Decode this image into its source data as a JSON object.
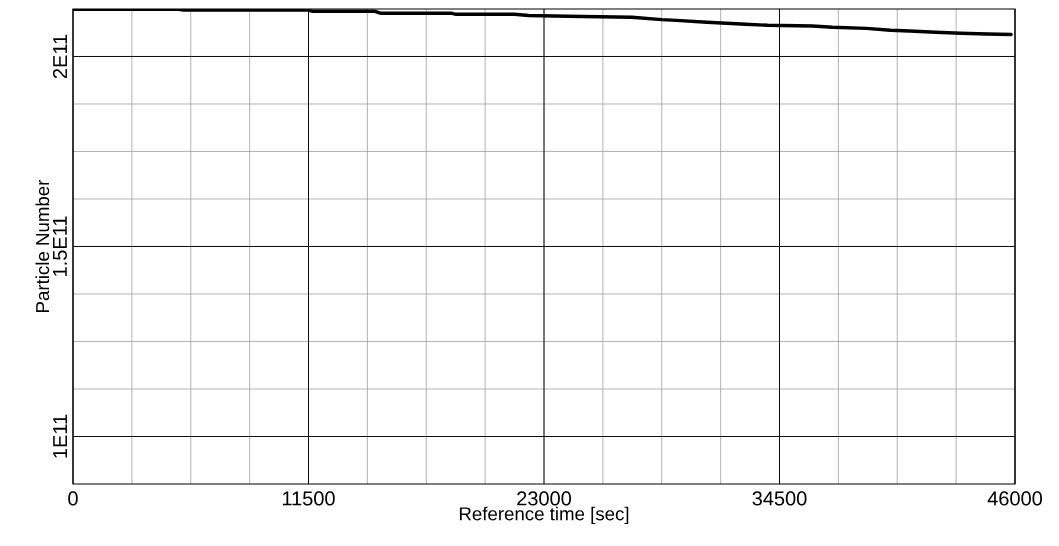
{
  "chart_data": {
    "type": "line",
    "xlabel": "Reference time [sec]",
    "ylabel": "Particle Number",
    "xlim": [
      0,
      46000
    ],
    "ylim": [
      87500000000,
      212500000000
    ],
    "xticks": [
      0,
      {
        "value": 2875,
        "label": null
      },
      {
        "value": 5750,
        "label": null
      },
      {
        "value": 8625,
        "label": null
      },
      11500,
      {
        "value": 14375,
        "label": null
      },
      {
        "value": 17250,
        "label": null
      },
      {
        "value": 20125,
        "label": null
      },
      23000,
      {
        "value": 25875,
        "label": null
      },
      {
        "value": 28750,
        "label": null
      },
      {
        "value": 31625,
        "label": null
      },
      34500,
      {
        "value": 37375,
        "label": null
      },
      {
        "value": 40250,
        "label": null
      },
      {
        "value": 43125,
        "label": null
      },
      46000
    ],
    "yticks": [
      {
        "value": 100000000000,
        "label": "1E11"
      },
      {
        "value": 112500000000,
        "label": null
      },
      {
        "value": 125000000000,
        "label": null
      },
      {
        "value": 137500000000,
        "label": null
      },
      {
        "value": 150000000000,
        "label": "1.5E11"
      },
      {
        "value": 162500000000,
        "label": null
      },
      {
        "value": 175000000000,
        "label": null
      },
      {
        "value": 187500000000,
        "label": null
      },
      {
        "value": 200000000000,
        "label": "2E11"
      }
    ],
    "grid": true,
    "series": [
      {
        "color": "#000000",
        "x": [
          0,
          5180,
          5400,
          11500,
          11700,
          14750,
          15000,
          18470,
          18700,
          21540,
          22250,
          24130,
          27290,
          28750,
          29460,
          30960,
          32850,
          33930,
          36100,
          37090,
          38740,
          39920,
          40860,
          42130,
          43360,
          44630,
          45810
        ],
        "values": [
          212400000000,
          212400000000,
          212200000000,
          212200000000,
          211900000000,
          211900000000,
          211400000000,
          211400000000,
          211100000000,
          211100000000,
          210800000000,
          210600000000,
          210300000000,
          209700000000,
          209500000000,
          209000000000,
          208500000000,
          208200000000,
          208000000000,
          207700000000,
          207400000000,
          206900000000,
          206700000000,
          206400000000,
          206100000000,
          205900000000,
          205800000000
        ]
      }
    ]
  }
}
